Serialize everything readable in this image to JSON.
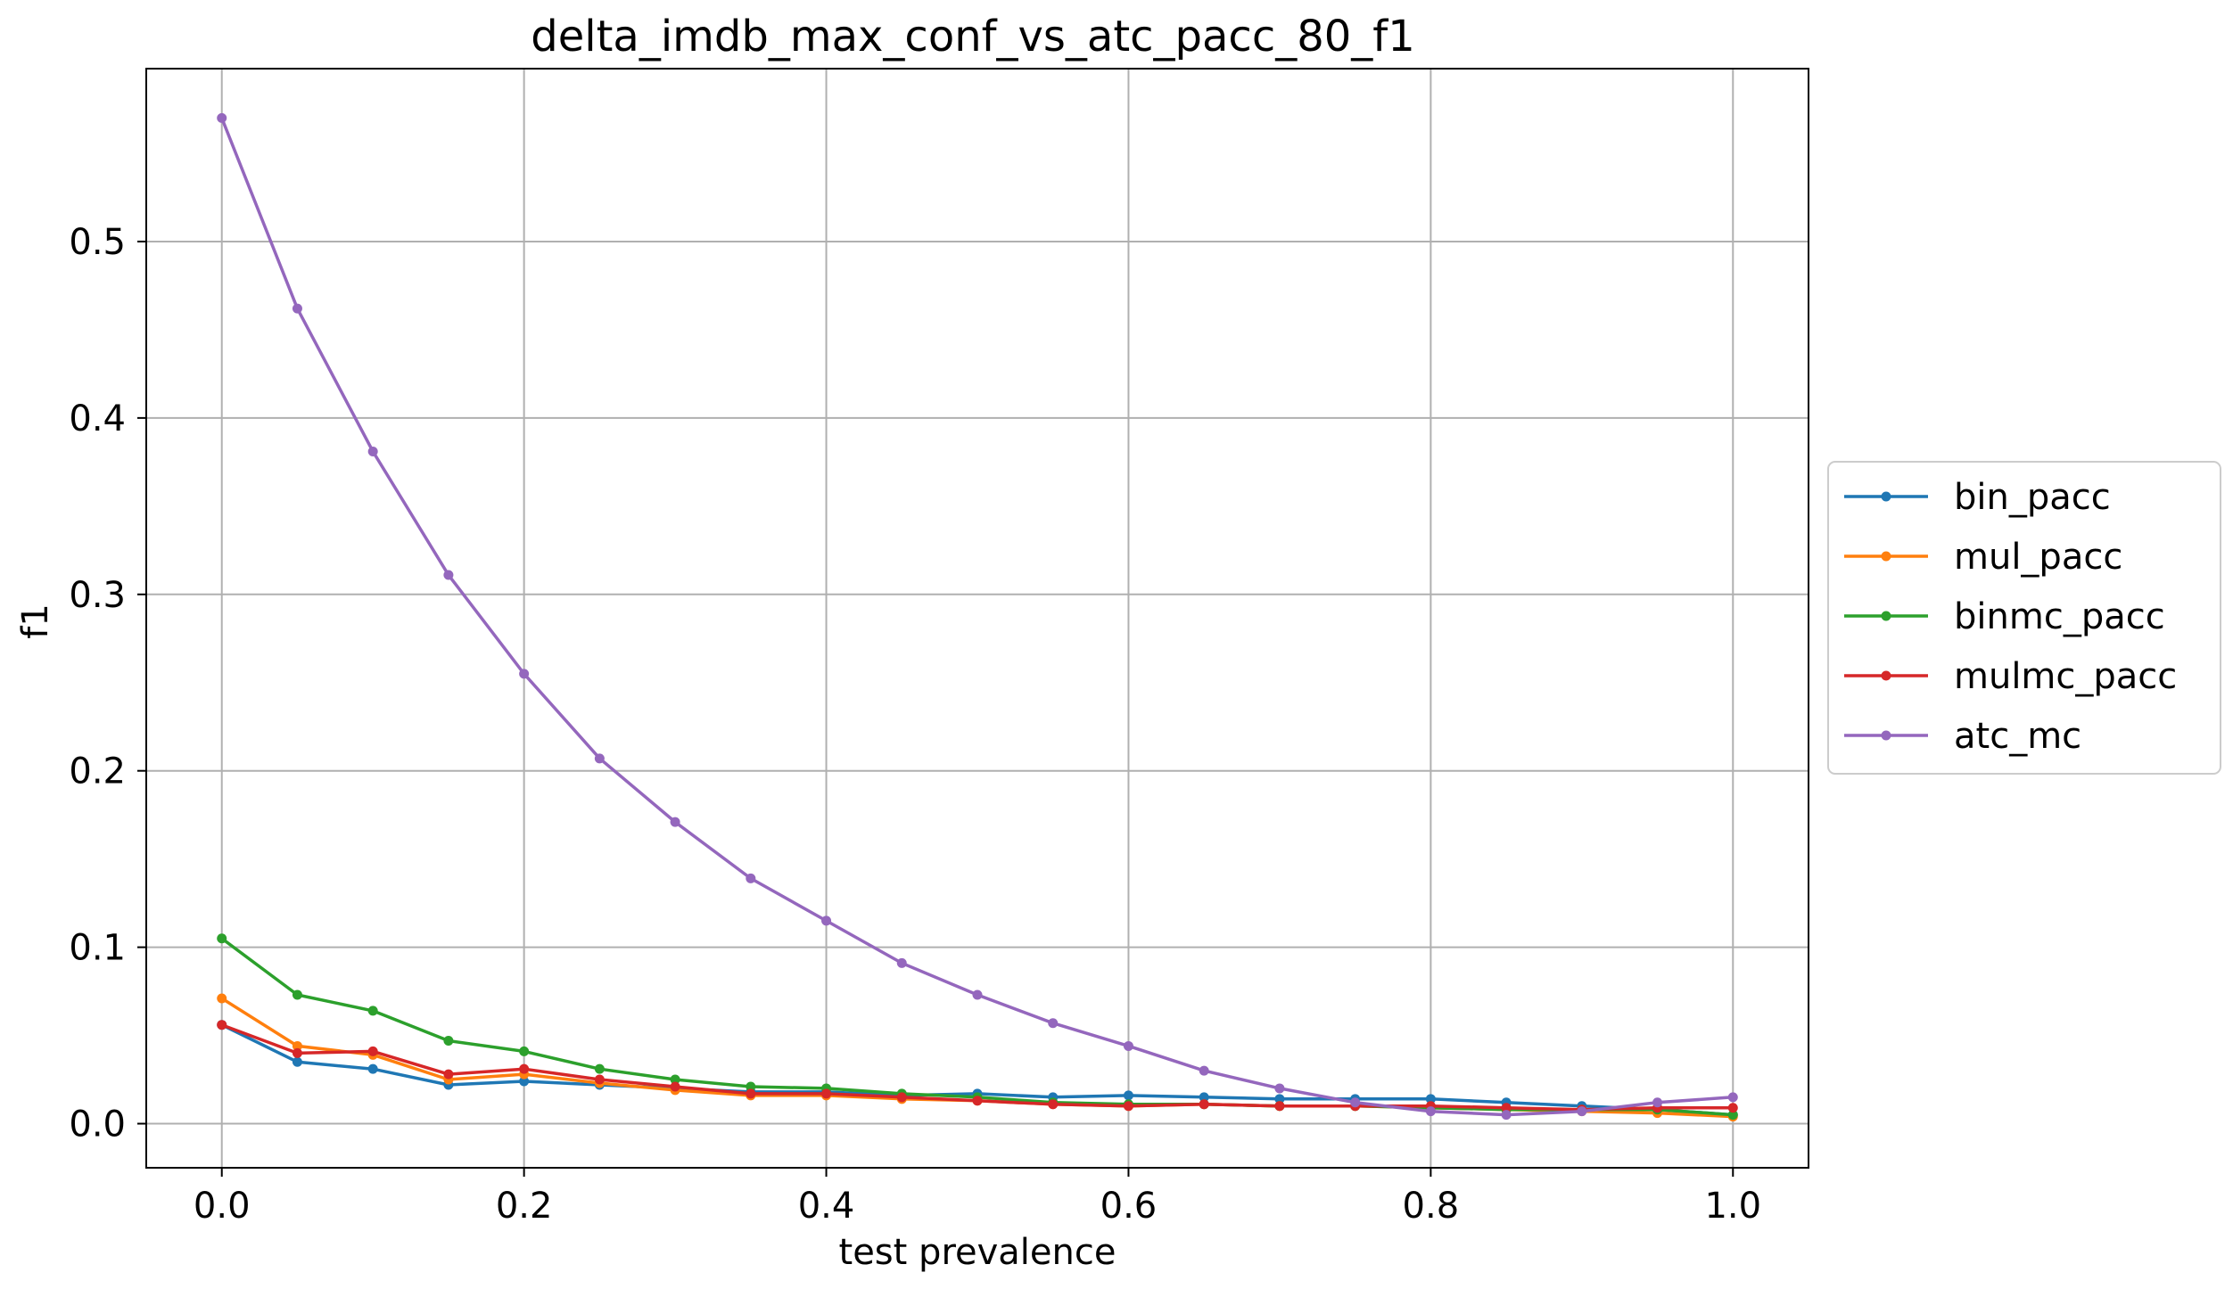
{
  "chart_data": {
    "type": "line",
    "title": "delta_imdb_max_conf_vs_atc_pacc_80_f1",
    "xlabel": "test prevalence",
    "ylabel": "f1",
    "xlim": [
      -0.05,
      1.05
    ],
    "ylim": [
      -0.025,
      0.598
    ],
    "xticks": [
      0.0,
      0.2,
      0.4,
      0.6,
      0.8,
      1.0
    ],
    "xtick_labels": [
      "0.0",
      "0.2",
      "0.4",
      "0.6",
      "0.8",
      "1.0"
    ],
    "yticks": [
      0.0,
      0.1,
      0.2,
      0.3,
      0.4,
      0.5
    ],
    "ytick_labels": [
      "0.0",
      "0.1",
      "0.2",
      "0.3",
      "0.4",
      "0.5"
    ],
    "grid": true,
    "legend_position": "center-right-outside",
    "x": [
      0.0,
      0.05,
      0.1,
      0.15,
      0.2,
      0.25,
      0.3,
      0.35,
      0.4,
      0.45,
      0.5,
      0.55,
      0.6,
      0.65,
      0.7,
      0.75,
      0.8,
      0.85,
      0.9,
      0.95,
      1.0
    ],
    "series": [
      {
        "name": "bin_pacc",
        "color": "#1f77b4",
        "values": [
          0.056,
          0.035,
          0.031,
          0.022,
          0.024,
          0.022,
          0.02,
          0.018,
          0.018,
          0.016,
          0.017,
          0.015,
          0.016,
          0.015,
          0.014,
          0.014,
          0.014,
          0.012,
          0.01,
          0.008,
          0.005
        ]
      },
      {
        "name": "mul_pacc",
        "color": "#ff7f0e",
        "values": [
          0.071,
          0.044,
          0.039,
          0.025,
          0.028,
          0.023,
          0.019,
          0.016,
          0.016,
          0.014,
          0.013,
          0.011,
          0.01,
          0.011,
          0.01,
          0.01,
          0.009,
          0.008,
          0.007,
          0.006,
          0.004
        ]
      },
      {
        "name": "binmc_pacc",
        "color": "#2ca02c",
        "values": [
          0.105,
          0.073,
          0.064,
          0.047,
          0.041,
          0.031,
          0.025,
          0.021,
          0.02,
          0.017,
          0.015,
          0.012,
          0.011,
          0.011,
          0.01,
          0.01,
          0.009,
          0.008,
          0.008,
          0.008,
          0.005
        ]
      },
      {
        "name": "mulmc_pacc",
        "color": "#d62728",
        "values": [
          0.056,
          0.04,
          0.041,
          0.028,
          0.031,
          0.025,
          0.021,
          0.017,
          0.017,
          0.015,
          0.013,
          0.011,
          0.01,
          0.011,
          0.01,
          0.01,
          0.01,
          0.009,
          0.008,
          0.009,
          0.009
        ]
      },
      {
        "name": "atc_mc",
        "color": "#9467bd",
        "values": [
          0.57,
          0.462,
          0.381,
          0.311,
          0.255,
          0.207,
          0.171,
          0.139,
          0.115,
          0.091,
          0.073,
          0.057,
          0.044,
          0.03,
          0.02,
          0.012,
          0.007,
          0.005,
          0.007,
          0.012,
          0.015
        ]
      }
    ]
  }
}
